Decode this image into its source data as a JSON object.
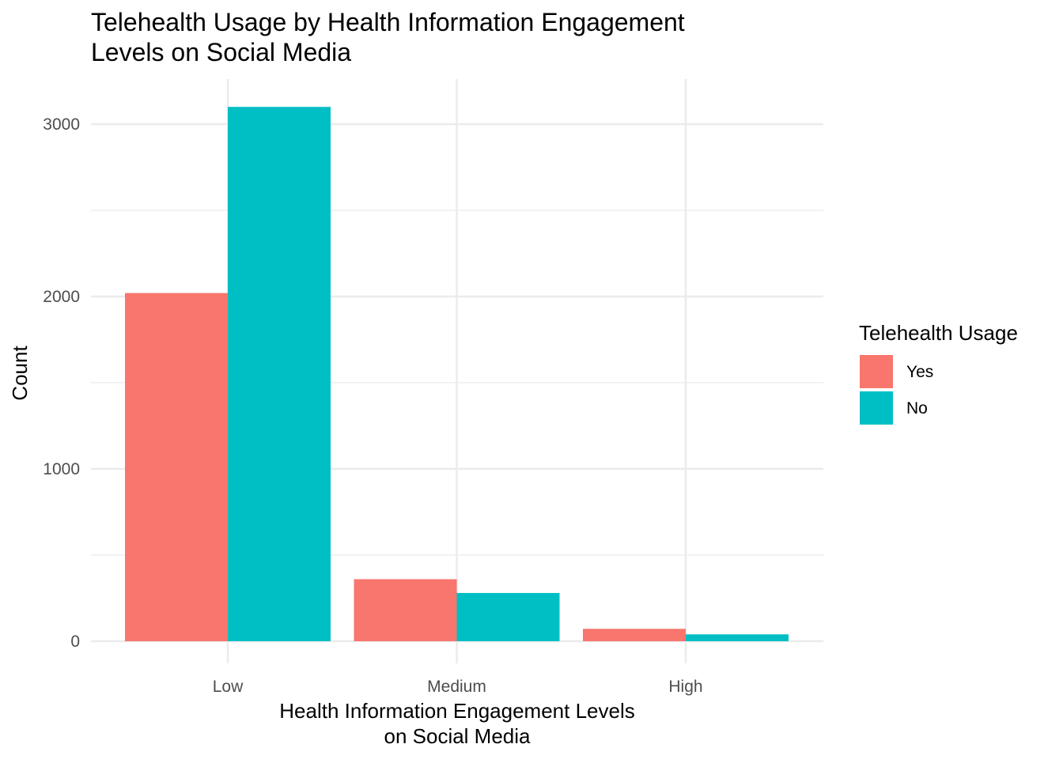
{
  "chart_data": {
    "type": "bar",
    "title_lines": [
      "Telehealth Usage by Health Information Engagement",
      "Levels on Social Media"
    ],
    "xlabel_lines": [
      "Health Information Engagement Levels",
      "on Social Media"
    ],
    "ylabel": "Count",
    "categories": [
      "Low",
      "Medium",
      "High"
    ],
    "series": [
      {
        "name": "Yes",
        "color": "#F8766D",
        "values": [
          2020,
          360,
          72
        ]
      },
      {
        "name": "No",
        "color": "#00BFC4",
        "values": [
          3100,
          280,
          40
        ]
      }
    ],
    "ylim": [
      0,
      3270
    ],
    "yticks": [
      0,
      1000,
      2000,
      3000
    ],
    "yminor": [
      500,
      1500,
      2500
    ],
    "legend": {
      "title": "Telehealth Usage",
      "position": "right"
    },
    "grid": true
  }
}
